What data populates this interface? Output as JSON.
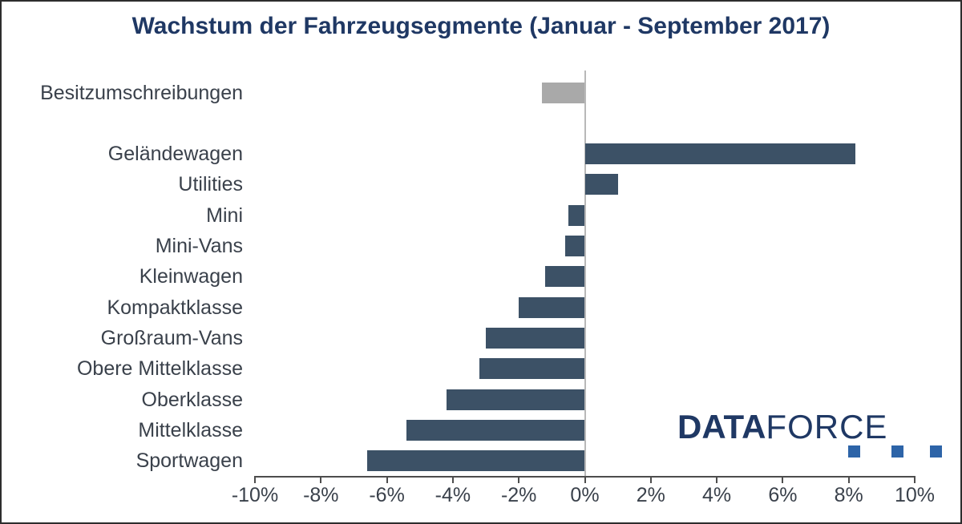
{
  "title": "Wachstum der Fahrzeugsegmente (Januar - September 2017)",
  "logo": {
    "text_bold": "DATA",
    "text_light": "FORCE"
  },
  "colors": {
    "bar_blue": "#3c5166",
    "bar_gray": "#a9a9a9",
    "title": "#1f3864",
    "labels": "#3a414b",
    "axis": "#4d4d4d",
    "zero_line": "#b8b8b8",
    "logo_text": "#1f3864",
    "logo_square": "#2d64a8"
  },
  "chart_data": {
    "type": "bar",
    "orientation": "horizontal",
    "title": "Wachstum der Fahrzeugsegmente (Januar - September 2017)",
    "value_unit": "percent",
    "xlim": [
      -10,
      10
    ],
    "x_tick_values": [
      -10,
      -8,
      -6,
      -4,
      -2,
      0,
      2,
      4,
      6,
      8,
      10
    ],
    "x_tick_labels": [
      "-10%",
      "-8%",
      "-6%",
      "-4%",
      "-2%",
      "0%",
      "2%",
      "4%",
      "6%",
      "8%",
      "10%"
    ],
    "grid": "zero-line-only",
    "legend": "none",
    "rows": [
      {
        "label": "Besitzumschreibungen",
        "value": -1.3,
        "color_key": "gray"
      },
      {
        "label": "",
        "value": null,
        "color_key": "spacer"
      },
      {
        "label": "Geländewagen",
        "value": 8.2,
        "color_key": "blue"
      },
      {
        "label": "Utilities",
        "value": 1.0,
        "color_key": "blue"
      },
      {
        "label": "Mini",
        "value": -0.5,
        "color_key": "blue"
      },
      {
        "label": "Mini-Vans",
        "value": -0.6,
        "color_key": "blue"
      },
      {
        "label": "Kleinwagen",
        "value": -1.2,
        "color_key": "blue"
      },
      {
        "label": "Kompaktklasse",
        "value": -2.0,
        "color_key": "blue"
      },
      {
        "label": "Großraum-Vans",
        "value": -3.0,
        "color_key": "blue"
      },
      {
        "label": "Obere Mittelklasse",
        "value": -3.2,
        "color_key": "blue"
      },
      {
        "label": "Oberklasse",
        "value": -4.2,
        "color_key": "blue"
      },
      {
        "label": "Mittelklasse",
        "value": -5.4,
        "color_key": "blue"
      },
      {
        "label": "Sportwagen",
        "value": -6.6,
        "color_key": "blue"
      }
    ]
  }
}
